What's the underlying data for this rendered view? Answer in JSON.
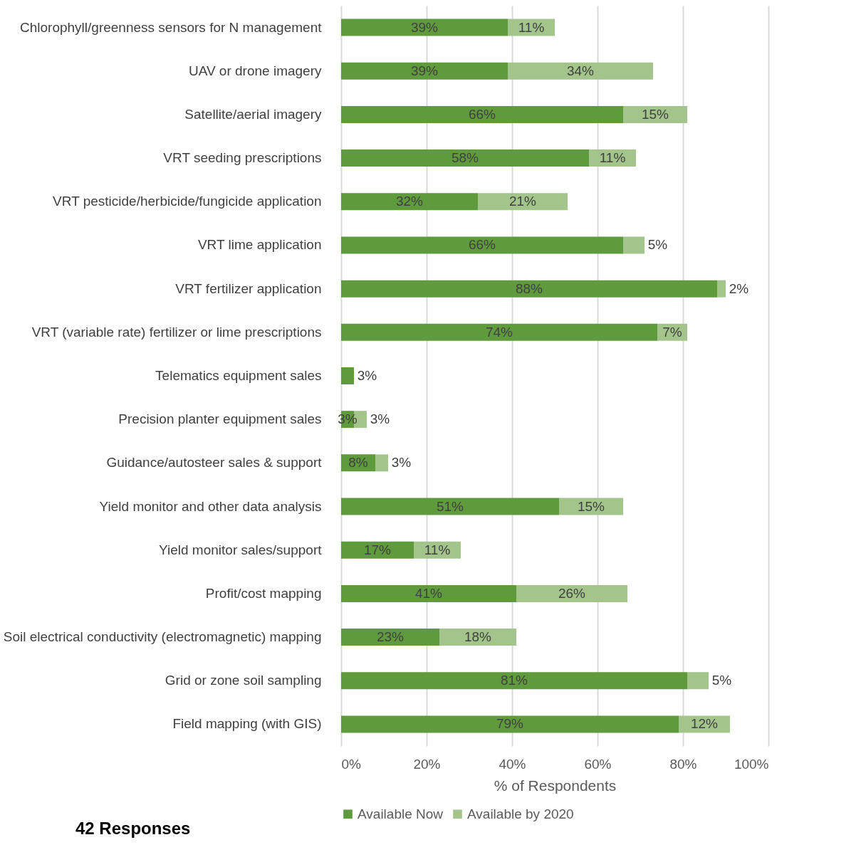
{
  "chart_data": {
    "type": "bar",
    "orientation": "horizontal",
    "stacked": true,
    "categories": [
      "Chlorophyll/greenness sensors for N management",
      "UAV or drone imagery",
      "Satellite/aerial imagery",
      "VRT seeding prescriptions",
      "VRT pesticide/herbicide/fungicide application",
      "VRT lime application",
      "VRT fertilizer application",
      "VRT (variable rate) fertilizer or lime prescriptions",
      "Telematics equipment sales",
      "Precision planter equipment sales",
      "Guidance/autosteer sales & support",
      "Yield monitor and other data analysis",
      "Yield monitor sales/support",
      "Profit/cost mapping",
      "Soil electrical conductivity (electromagnetic) mapping",
      "Grid or zone soil sampling",
      "Field mapping (with GIS)"
    ],
    "series": [
      {
        "name": "Available Now",
        "color": "#5f9a3d",
        "values": [
          39,
          39,
          66,
          58,
          32,
          66,
          88,
          74,
          3,
          3,
          8,
          51,
          17,
          41,
          23,
          81,
          79
        ],
        "value_labels": [
          "39%",
          "39%",
          "66%",
          "58%",
          "32%",
          "66%",
          "88%",
          "74%",
          "3%",
          "3%",
          "8%",
          "51%",
          "17%",
          "41%",
          "23%",
          "81%",
          "79%"
        ]
      },
      {
        "name": "Available by 2020",
        "color": "#a3c58b",
        "values": [
          11,
          34,
          15,
          11,
          21,
          5,
          2,
          7,
          null,
          3,
          3,
          15,
          11,
          26,
          18,
          5,
          12
        ],
        "value_labels": [
          "11%",
          "34%",
          "15%",
          "11%",
          "21%",
          "5%",
          "2%",
          "7%",
          null,
          "3%",
          "3%",
          "15%",
          "11%",
          "26%",
          "18%",
          "5%",
          "12%"
        ]
      }
    ],
    "xlim": [
      0,
      100
    ],
    "xticks": [
      {
        "value": 0,
        "label": "0%"
      },
      {
        "value": 20,
        "label": "20%"
      },
      {
        "value": 40,
        "label": "40%"
      },
      {
        "value": 60,
        "label": "60%"
      },
      {
        "value": 80,
        "label": "80%"
      },
      {
        "value": 100,
        "label": "100%"
      }
    ],
    "xlabel": "% of Respondents",
    "grid": "x",
    "legend": "bottom",
    "annotations": [
      "42 Responses"
    ]
  }
}
